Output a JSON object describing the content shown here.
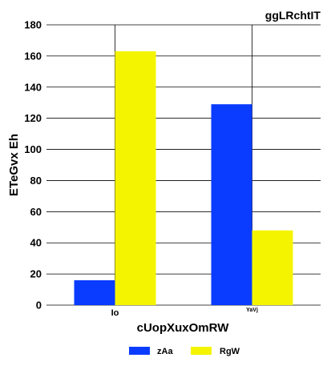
{
  "chart_data": {
    "type": "bar",
    "title": "ggLRchtIT",
    "xlabel": "cUopXuxOmRW",
    "ylabel": "ETeGvx Eh",
    "categories": [
      "Io",
      "YaVj"
    ],
    "series": [
      {
        "name": "zAa",
        "values": [
          16,
          129
        ],
        "color": "#0a3cff"
      },
      {
        "name": "RgW",
        "values": [
          163,
          48
        ],
        "color": "#f4f400"
      }
    ],
    "ylim": [
      0,
      180
    ],
    "yticks": [
      0,
      20,
      40,
      60,
      80,
      100,
      120,
      140,
      160,
      180
    ],
    "grid": "horizontal",
    "legend_position": "bottom"
  }
}
